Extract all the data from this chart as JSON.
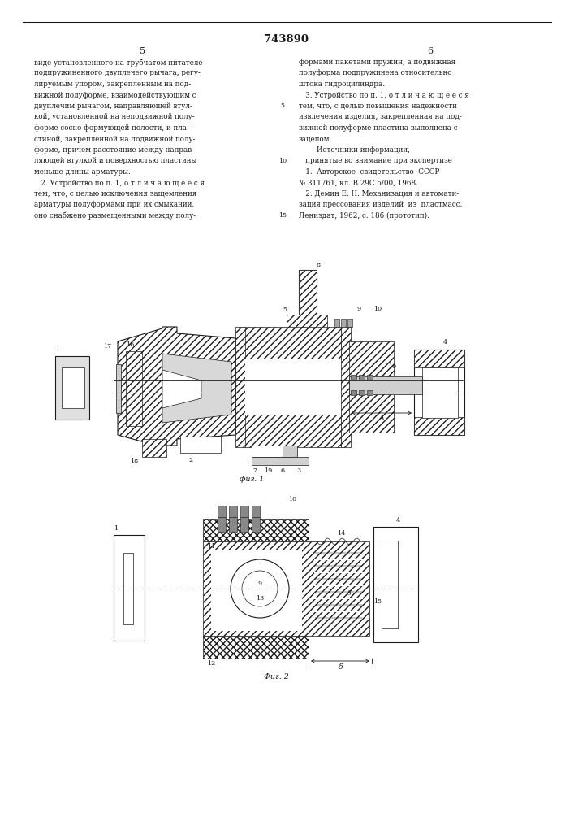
{
  "page_width": 7.07,
  "page_height": 10.0,
  "background_color": "#ffffff",
  "patent_number": "743890",
  "line_col": "#1a1a1a",
  "page_num_left": "5",
  "page_num_right": "6",
  "font_size_text": 6.3,
  "font_size_num": 8.0,
  "font_size_header": 9.5,
  "font_size_label": 5.8,
  "col_left_text": [
    "виде установленного на трубчатом питателе",
    "подпружиненного двуплечего рычага, регу-",
    "лируемым упором, закрепленным на под-",
    "вижной полуформе, взаимодействующим с",
    "двуплечим рычагом, направляющей втул-",
    "кой, установленной на неподвижной полу-",
    "форме сосно формующей полости, и пла-",
    "стиной, закрепленной на подвижной полу-",
    "форме, причем расстояние между направ-",
    "ляющей втулкой и поверхностью пластины",
    "меньше длины арматуры.",
    "   2. Устройство по п. 1, о т л и ч а ю щ е е с я",
    "тем, что, с целью исключения защемления",
    "арматуры полуформами при их смыкании,",
    "оно снабжено размещенными между полу-"
  ],
  "col_right_text": [
    "формами пакетами пружин, а подвижная",
    "полуформа подпружинена относительно",
    "штока гидроцилиндра.",
    "   3. Устройство по п. 1, о т л и ч а ю щ е е с я",
    "тем, что, с целью повышения надежности",
    "извлечения изделия, закрепленная на под-",
    "вижной полуформе пластина выполнена с",
    "зацепом.",
    "        Источники информации,",
    "   принятые во внимание при экспертизе",
    "   1.  Авторское  свидетельство  СССР",
    "№ 311761, кл. В 29С 5/00, 1968.",
    "   2. Демин Е. Н. Механизация и автомати-",
    "зация прессования изделий  из  пластмасс.",
    "Лениздат, 1962, с. 186 (прототип)."
  ],
  "fig1_caption": "фиг. 1",
  "fig2_caption": "Фиг. 2"
}
